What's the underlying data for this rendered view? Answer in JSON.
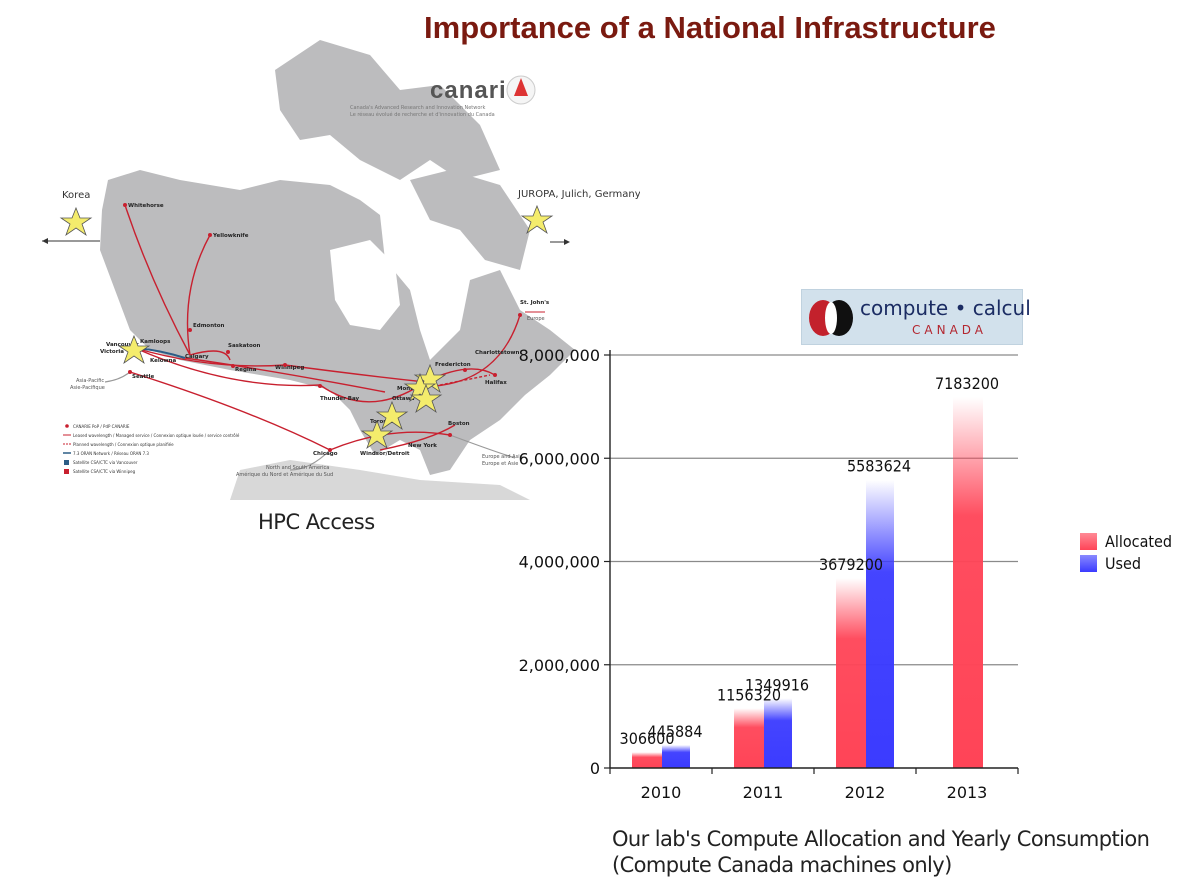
{
  "slide": {
    "title": "Importance of a National Infrastructure"
  },
  "map": {
    "caption": "HPC Access",
    "logo": {
      "wordmark": "canarie",
      "tagline_en": "Canada's Advanced Research and Innovation Network",
      "tagline_fr": "Le réseau évolué de recherche et d'innovation du Canada"
    },
    "left_link": "Korea",
    "right_link": "JUROPA, Julich, Germany",
    "cities": [
      "Whitehorse",
      "Yellowknife",
      "Edmonton",
      "Kamloops",
      "Vancouver",
      "Victoria",
      "Kelowna",
      "Calgary",
      "Saskatoon",
      "Regina",
      "Winnipeg",
      "Thunder Bay",
      "Toronto",
      "Ottawa",
      "Montreal",
      "Windsor/Detroit",
      "Chicago",
      "Seattle",
      "New York",
      "Boston",
      "Fredericton",
      "Charlottetown",
      "Halifax",
      "St. John's"
    ],
    "regions": [
      "Asia-Pacific",
      "Asie-Pacifique",
      "North and South America",
      "Amérique du Nord et Amérique du Sud",
      "Europe",
      "Europe and Asia",
      "Europe et Asie"
    ],
    "legend": [
      "CANARIE PoP / PdP CANARIE",
      "Leased wavelength / Managed service / Connexion optique louée / service contrôlé",
      "Planned wavelength / Connexion optique planifiée",
      "7.3 ORAN Network / Réseau ORAN 7.3",
      "Satellite CSA/CTC via Vancouver",
      "Satellite CSA/CTC via Winnipeg"
    ],
    "colors": {
      "land": "#bcbcbe",
      "route": "#c8202f",
      "star": "#f4ec6c"
    }
  },
  "compute_logo": {
    "top": "compute • calcul",
    "bottom": "CANADA"
  },
  "chart_data": {
    "type": "bar",
    "categories": [
      "2010",
      "2011",
      "2012",
      "2013"
    ],
    "series": [
      {
        "name": "Allocated",
        "values": [
          306600,
          1156320,
          3679200,
          7183200
        ],
        "color": "#ff4457"
      },
      {
        "name": "Used",
        "values": [
          445884,
          1349916,
          5583624,
          null
        ],
        "color": "#3b3bff"
      }
    ],
    "data_labels": {
      "Allocated": [
        "306600",
        "1156320",
        "3679200",
        "7183200"
      ],
      "Used": [
        "445884",
        "1349916",
        "5583624",
        ""
      ]
    },
    "y_ticks": [
      "0",
      "2,000,000",
      "4,000,000",
      "6,000,000",
      "8,000,000"
    ],
    "ylim": [
      0,
      8000000
    ],
    "grid": true,
    "legend_position": "right"
  },
  "chart_caption": {
    "line1": "Our lab's Compute Allocation and Yearly Consumption",
    "line2": "(Compute Canada machines only)"
  }
}
